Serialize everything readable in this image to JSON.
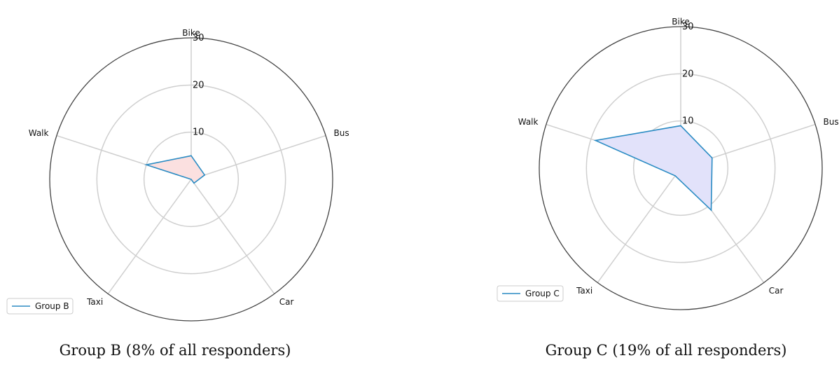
{
  "captions": [
    "Group B (8% of all responders)",
    "Group C (19% of all responders)"
  ],
  "chart_data": [
    {
      "type": "radar",
      "categories": [
        "Bike",
        "Bus",
        "Car",
        "Taxi",
        "Walk"
      ],
      "rticks": [
        10,
        20,
        30
      ],
      "rlim": [
        0,
        30
      ],
      "grid": true,
      "legend_placement": "lower-left",
      "series": [
        {
          "name": "Group B",
          "values": [
            5,
            3,
            1,
            0,
            10
          ],
          "line_color": "#2b8cc4",
          "fill_color": "#fbe0e0"
        }
      ]
    },
    {
      "type": "radar",
      "categories": [
        "Bike",
        "Bus",
        "Car",
        "Taxi",
        "Walk"
      ],
      "rticks": [
        10,
        20,
        30
      ],
      "rlim": [
        0,
        30
      ],
      "grid": true,
      "legend_placement": "lower-left",
      "series": [
        {
          "name": "Group C",
          "values": [
            9,
            7,
            11,
            2,
            19
          ],
          "line_color": "#2b8cc4",
          "fill_color": "#e2e2fa"
        }
      ]
    }
  ]
}
